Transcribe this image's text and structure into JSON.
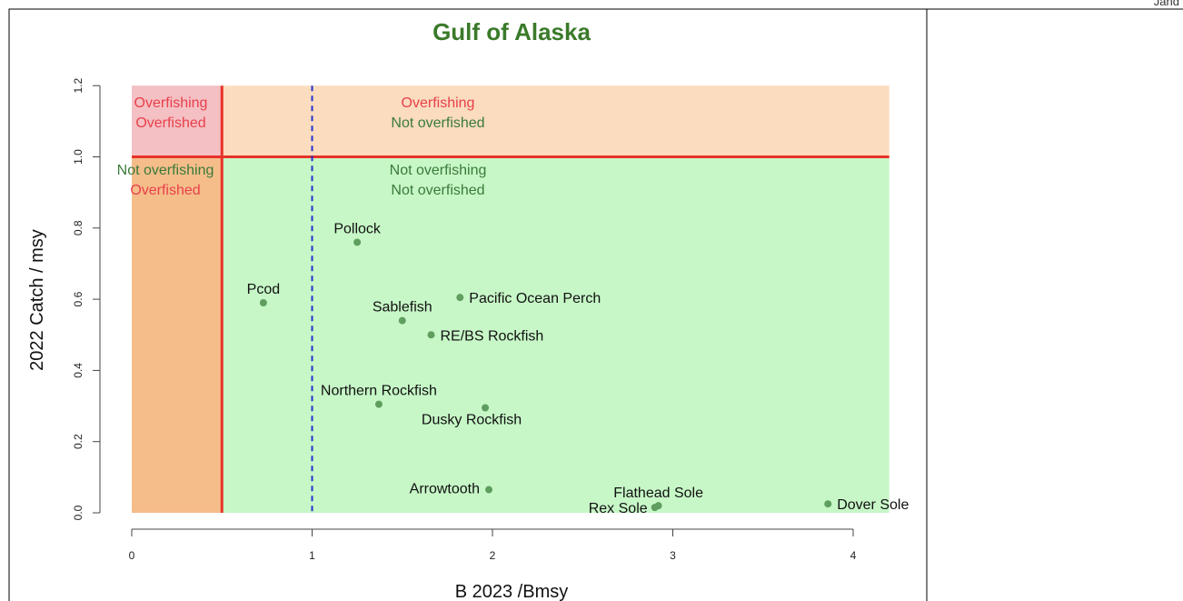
{
  "corner_text": "Jand",
  "chart_data": {
    "type": "scatter",
    "title": "Gulf of Alaska",
    "xlabel": "B 2023 /Bmsy",
    "ylabel": "2022 Catch / msy",
    "xlim": [
      0,
      4.2
    ],
    "ylim": [
      0,
      1.2
    ],
    "xticks": [
      "0",
      "1",
      "2",
      "3",
      "4"
    ],
    "yticks": [
      "0.0",
      "0.2",
      "0.4",
      "0.6",
      "0.8",
      "1.0",
      "1.2"
    ],
    "grid": false,
    "reference_lines": {
      "bmsy_half": 0.5,
      "bmsy": 1.0,
      "catch_msy": 1.0
    },
    "regions": [
      {
        "label_line1": "Overfishing",
        "label_line2": "Overfished",
        "color1": "#e8404a",
        "color2": "#e8404a"
      },
      {
        "label_line1": "Overfishing",
        "label_line2": "Not overfished",
        "color1": "#e8404a",
        "color2": "#3a7a3a"
      },
      {
        "label_line1": "Not overfishing",
        "label_line2": "Overfished",
        "color1": "#3a7a3a",
        "color2": "#e8404a"
      },
      {
        "label_line1": "Not overfishing",
        "label_line2": "Not overfished",
        "color1": "#3a7a3a",
        "color2": "#3a7a3a"
      }
    ],
    "points": [
      {
        "label": "Pollock",
        "x": 1.25,
        "y": 0.76
      },
      {
        "label": "Pcod",
        "x": 0.73,
        "y": 0.59
      },
      {
        "label": "Pacific Ocean Perch",
        "x": 1.82,
        "y": 0.605
      },
      {
        "label": "Sablefish",
        "x": 1.5,
        "y": 0.54
      },
      {
        "label": "RE/BS Rockfish",
        "x": 1.66,
        "y": 0.5
      },
      {
        "label": "Northern Rockfish",
        "x": 1.37,
        "y": 0.305
      },
      {
        "label": "Dusky Rockfish",
        "x": 1.96,
        "y": 0.295
      },
      {
        "label": "Arrowtooth",
        "x": 1.98,
        "y": 0.065
      },
      {
        "label": "Flathead Sole",
        "x": 2.92,
        "y": 0.02
      },
      {
        "label": "Rex Sole",
        "x": 2.9,
        "y": 0.015
      },
      {
        "label": "Dover Sole",
        "x": 3.86,
        "y": 0.025
      }
    ],
    "colors": {
      "overfished_overfishing": "#f4c0c4",
      "overfishing_not_overfished": "#fbdcbe",
      "overfished_not_overfishing": "#f5bd8a",
      "healthy": "#c7f7c7",
      "reference_line": "#e8322a",
      "bmsy_line": "#2233cc",
      "point": "#5f9e5f",
      "title": "#3a7a2a"
    }
  }
}
